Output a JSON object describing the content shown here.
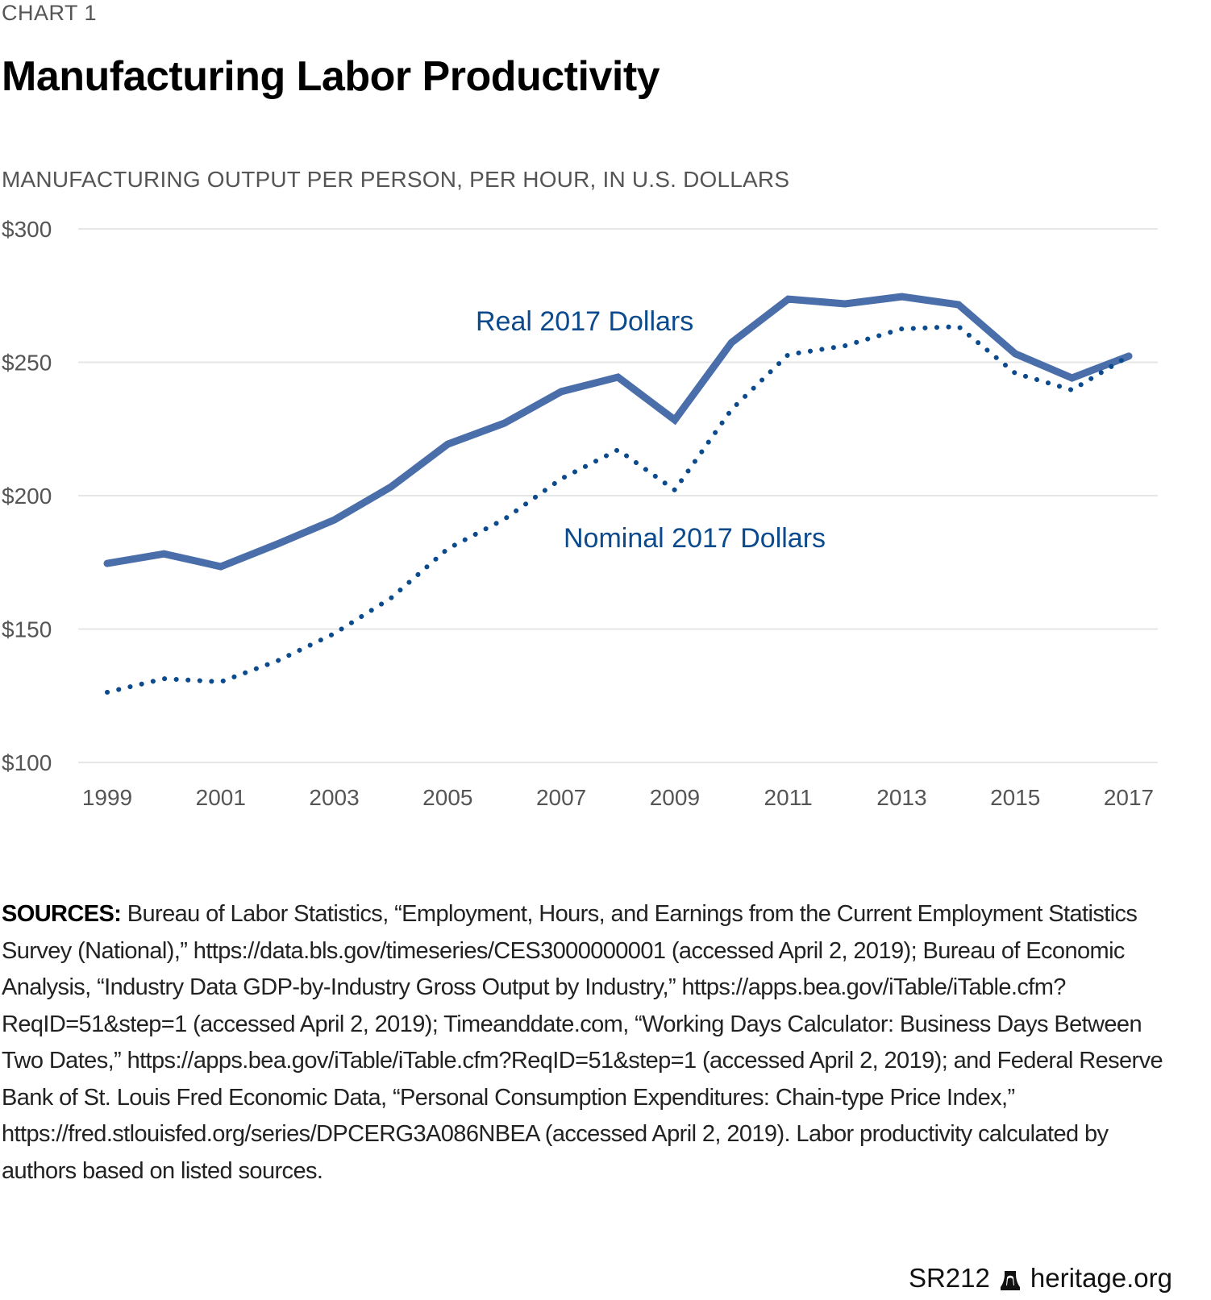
{
  "eyebrow": "CHART 1",
  "title": "Manufacturing Labor Productivity",
  "subtitle": "MANUFACTURING OUTPUT PER PERSON, PER HOUR, IN U.S. DOLLARS",
  "colors": {
    "real": "#4a6ea9",
    "nominal": "#0b4a8c",
    "grid": "#e6e6e6",
    "tick": "#555555",
    "label": "#0b4a8c"
  },
  "chart_data": {
    "type": "line",
    "title": "Manufacturing Labor Productivity",
    "ylabel": "Manufacturing output per person, per hour, in U.S. dollars",
    "xlabel": "",
    "x": [
      1999,
      2000,
      2001,
      2002,
      2003,
      2004,
      2005,
      2006,
      2007,
      2008,
      2009,
      2010,
      2011,
      2012,
      2013,
      2014,
      2015,
      2016,
      2017
    ],
    "xticks": [
      "1999",
      "2001",
      "2003",
      "2005",
      "2007",
      "2009",
      "2011",
      "2013",
      "2015",
      "2017"
    ],
    "ylim": [
      100,
      300
    ],
    "yticks": [
      {
        "value": 300,
        "label": "$300"
      },
      {
        "value": 250,
        "label": "$250"
      },
      {
        "value": 200,
        "label": "$200"
      },
      {
        "value": 150,
        "label": "$150"
      },
      {
        "value": 100,
        "label": "$100"
      }
    ],
    "grid": true,
    "series": [
      {
        "name": "Real 2017 Dollars",
        "style": "solid",
        "values": [
          174.6,
          178.2,
          173.4,
          181.9,
          190.9,
          203.3,
          219.3,
          227.2,
          239.0,
          244.4,
          228.4,
          257.4,
          273.7,
          271.9,
          274.6,
          271.6,
          253.2,
          244.1,
          252.3
        ]
      },
      {
        "name": "Nominal 2017 Dollars",
        "style": "dotted",
        "values": [
          126.3,
          131.4,
          130.2,
          138.1,
          148.3,
          161.6,
          180.1,
          191.2,
          206.3,
          217.2,
          202.1,
          232.3,
          252.9,
          256.2,
          262.5,
          263.4,
          245.9,
          239.6,
          252.3
        ]
      }
    ],
    "annotations": [
      {
        "text": "Real 2017 Dollars",
        "series": "Real 2017 Dollars"
      },
      {
        "text": "Nominal 2017 Dollars",
        "series": "Nominal 2017 Dollars"
      }
    ]
  },
  "sources": {
    "label": "SOURCES:",
    "text": " Bureau of Labor Statistics, “Employment, Hours, and Earnings from the Current Employment Statistics Survey (National),” https://data.bls.gov/timeseries/CES3000000001 (accessed April 2, 2019); Bureau of Economic Analysis, “Industry Data GDP-by-Industry Gross Output by Industry,” https://apps.bea.gov/iTable/iTable.cfm? ReqID=51&step=1 (accessed April 2, 2019); Timeanddate.com, “Working Days Calculator: Business Days Between Two Dates,” https://apps.bea.gov/iTable/iTable.cfm?ReqID=51&step=1 (accessed April 2, 2019); and Federal Reserve Bank of St. Louis Fred Economic Data, “Personal Consumption Expenditures: Chain-type Price Index,” https://fred.stlouisfed.org/series/DPCERG3A086NBEA (accessed April 2, 2019). Labor productivity calculated by authors based on listed sources."
  },
  "footer": {
    "report_id": "SR212",
    "icon": "liberty-bell-icon",
    "site": "heritage.org"
  }
}
